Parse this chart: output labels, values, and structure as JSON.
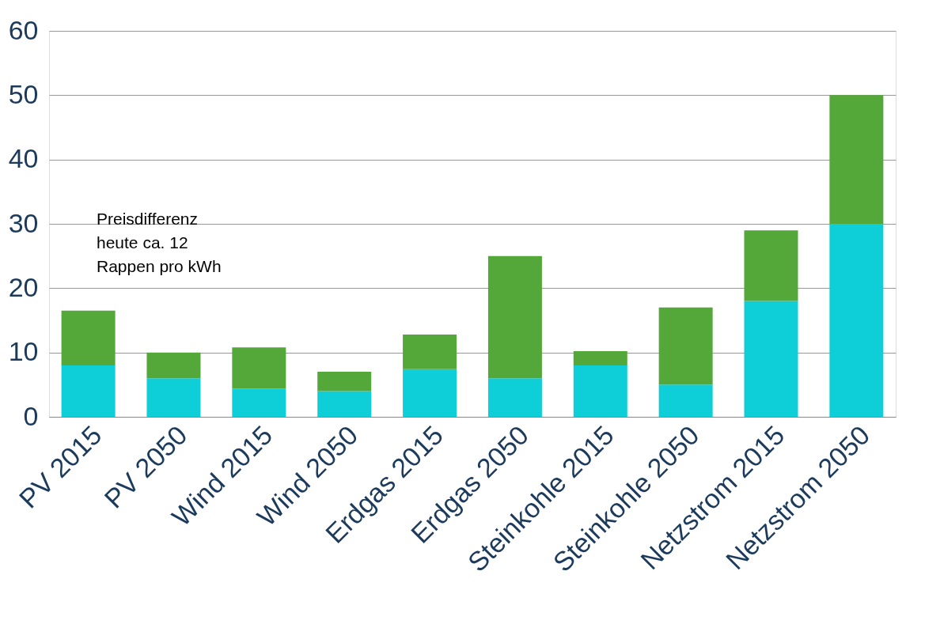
{
  "chart_data": {
    "type": "bar",
    "stacked": true,
    "categories": [
      "PV 2015",
      "PV 2050",
      "Wind 2015",
      "Wind 2050",
      "Erdgas 2015",
      "Erdgas 2050",
      "Steinkohle 2015",
      "Steinkohle 2050",
      "Netzstrom 2015",
      "Netzstrom 2050"
    ],
    "series": [
      {
        "color": "#0ecfd8",
        "values": [
          8,
          6,
          4.4,
          4,
          7.4,
          6,
          8,
          5,
          18,
          30
        ]
      },
      {
        "color": "#54a83a",
        "values": [
          8.5,
          4,
          6.4,
          3,
          5.4,
          19,
          2.2,
          12,
          11,
          20
        ]
      }
    ],
    "ylim": [
      0,
      60
    ],
    "yticks": [
      0,
      10,
      20,
      30,
      40,
      50,
      60
    ],
    "grid": "y",
    "legend": false,
    "annotations": [
      "Preisdifferenz\nheute ca. 12\nRappen pro kWh"
    ]
  }
}
